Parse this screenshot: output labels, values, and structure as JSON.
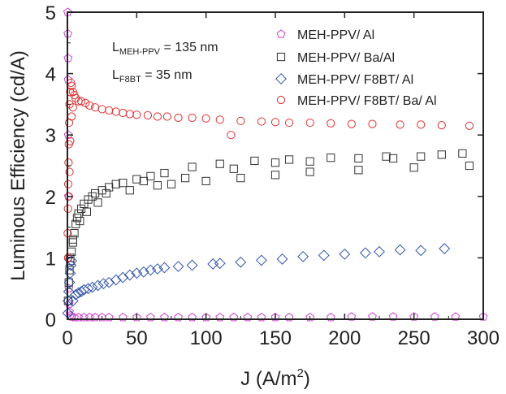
{
  "chart_data": {
    "type": "scatter",
    "title": "",
    "xlabel": "J (A/m",
    "xlabel_sup": "2",
    "xlabel_end": ")",
    "ylabel": "Luminous Efficiency (cd/A)",
    "xlim": [
      0,
      300
    ],
    "ylim": [
      0,
      5
    ],
    "xticks": [
      "0",
      "50",
      "100",
      "150",
      "200",
      "250",
      "300"
    ],
    "yticks": [
      "0",
      "1",
      "2",
      "3",
      "4",
      "5"
    ],
    "grid": false,
    "legend_position": "top-right",
    "annotations": [
      {
        "main": "L",
        "sub": "MEH-PPV",
        "value": " = 135 nm"
      },
      {
        "main": "L",
        "sub": "F8BT",
        "value": " = 35 nm"
      }
    ],
    "series": [
      {
        "name": "MEH-PPV/ Al",
        "marker": "pentagon",
        "color": "#cc44cc",
        "points": [
          [
            0.2,
            5.0
          ],
          [
            0.3,
            4.65
          ],
          [
            0.4,
            4.25
          ],
          [
            0.5,
            3.9
          ],
          [
            0.6,
            3.0
          ],
          [
            0.7,
            2.0
          ],
          [
            0.8,
            1.0
          ],
          [
            1.0,
            0.5
          ],
          [
            1.2,
            0.25
          ],
          [
            1.5,
            0.12
          ],
          [
            2,
            0.06
          ],
          [
            3,
            0.04
          ],
          [
            5,
            0.03
          ],
          [
            8,
            0.03
          ],
          [
            12,
            0.03
          ],
          [
            16,
            0.03
          ],
          [
            20,
            0.03
          ],
          [
            25,
            0.03
          ],
          [
            30,
            0.03
          ],
          [
            40,
            0.03
          ],
          [
            50,
            0.03
          ],
          [
            60,
            0.03
          ],
          [
            70,
            0.03
          ],
          [
            80,
            0.03
          ],
          [
            90,
            0.03
          ],
          [
            100,
            0.03
          ],
          [
            110,
            0.03
          ],
          [
            120,
            0.03
          ],
          [
            130,
            0.03
          ],
          [
            140,
            0.03
          ],
          [
            150,
            0.03
          ],
          [
            160,
            0.03
          ],
          [
            175,
            0.03
          ],
          [
            190,
            0.03
          ],
          [
            205,
            0.04
          ],
          [
            220,
            0.04
          ],
          [
            235,
            0.04
          ],
          [
            250,
            0.04
          ],
          [
            265,
            0.04
          ],
          [
            280,
            0.04
          ],
          [
            300,
            0.04
          ]
        ]
      },
      {
        "name": "MEH-PPV/ Ba/Al",
        "marker": "square",
        "color": "#333333",
        "points": [
          [
            0.5,
            0.3
          ],
          [
            1,
            0.6
          ],
          [
            1.5,
            0.8
          ],
          [
            2,
            0.95
          ],
          [
            3,
            1.1
          ],
          [
            4,
            1.25
          ],
          [
            5,
            1.4
          ],
          [
            6,
            1.55
          ],
          [
            7,
            1.65
          ],
          [
            8,
            1.72
          ],
          [
            10,
            1.8
          ],
          [
            12,
            1.88
          ],
          [
            15,
            1.95
          ],
          [
            18,
            2.0
          ],
          [
            20,
            2.05
          ],
          [
            25,
            2.1
          ],
          [
            30,
            2.15
          ],
          [
            35,
            2.2
          ],
          [
            40,
            2.22
          ],
          [
            50,
            2.28
          ],
          [
            60,
            2.33
          ],
          [
            70,
            2.38
          ],
          [
            75,
            2.2
          ],
          [
            90,
            2.48
          ],
          [
            100,
            2.25
          ],
          [
            110,
            2.53
          ],
          [
            125,
            2.3
          ],
          [
            135,
            2.58
          ],
          [
            150,
            2.35
          ],
          [
            160,
            2.6
          ],
          [
            175,
            2.4
          ],
          [
            190,
            2.63
          ],
          [
            210,
            2.43
          ],
          [
            230,
            2.65
          ],
          [
            250,
            2.47
          ],
          [
            270,
            2.68
          ],
          [
            290,
            2.5
          ],
          [
            2,
            1.0
          ],
          [
            4,
            1.3
          ],
          [
            9,
            1.6
          ],
          [
            14,
            1.75
          ],
          [
            22,
            1.9
          ],
          [
            28,
            2.05
          ],
          [
            45,
            2.1
          ],
          [
            55,
            2.25
          ],
          [
            65,
            2.18
          ],
          [
            85,
            2.3
          ],
          [
            120,
            2.45
          ],
          [
            150,
            2.55
          ],
          [
            175,
            2.57
          ],
          [
            210,
            2.62
          ],
          [
            235,
            2.62
          ],
          [
            255,
            2.65
          ],
          [
            285,
            2.7
          ]
        ]
      },
      {
        "name": "MEH-PPV/ F8BT/ Al",
        "marker": "diamond",
        "color": "#3355aa",
        "points": [
          [
            0.3,
            0.1
          ],
          [
            0.6,
            0.3
          ],
          [
            1,
            0.45
          ],
          [
            1.5,
            0.6
          ],
          [
            2,
            0.75
          ],
          [
            2.5,
            0.88
          ],
          [
            3,
            0.95
          ],
          [
            4,
            0.3
          ],
          [
            6,
            0.4
          ],
          [
            8,
            0.43
          ],
          [
            10,
            0.45
          ],
          [
            12,
            0.48
          ],
          [
            15,
            0.5
          ],
          [
            18,
            0.52
          ],
          [
            22,
            0.55
          ],
          [
            26,
            0.58
          ],
          [
            30,
            0.6
          ],
          [
            35,
            0.64
          ],
          [
            40,
            0.68
          ],
          [
            45,
            0.72
          ],
          [
            50,
            0.75
          ],
          [
            55,
            0.77
          ],
          [
            60,
            0.8
          ],
          [
            65,
            0.82
          ],
          [
            70,
            0.84
          ],
          [
            80,
            0.86
          ],
          [
            90,
            0.88
          ],
          [
            105,
            0.9
          ],
          [
            110,
            0.91
          ],
          [
            125,
            0.93
          ],
          [
            140,
            0.96
          ],
          [
            155,
            0.98
          ],
          [
            170,
            1.02
          ],
          [
            185,
            1.04
          ],
          [
            200,
            1.06
          ],
          [
            215,
            1.08
          ],
          [
            225,
            1.1
          ],
          [
            240,
            1.13
          ],
          [
            255,
            1.12
          ],
          [
            272,
            1.15
          ]
        ]
      },
      {
        "name": "MEH-PPV/ F8BT/ Ba/ Al",
        "marker": "circle",
        "color": "#e03030",
        "points": [
          [
            0.2,
            1.4
          ],
          [
            0.4,
            1.8
          ],
          [
            0.6,
            2.2
          ],
          [
            0.8,
            2.55
          ],
          [
            1.0,
            2.85
          ],
          [
            1.2,
            3.2
          ],
          [
            1.5,
            3.5
          ],
          [
            2,
            3.7
          ],
          [
            2.5,
            3.85
          ],
          [
            3,
            3.8
          ],
          [
            4,
            3.7
          ],
          [
            5,
            3.65
          ],
          [
            6,
            3.6
          ],
          [
            8,
            3.55
          ],
          [
            10,
            3.55
          ],
          [
            13,
            3.52
          ],
          [
            16,
            3.48
          ],
          [
            20,
            3.45
          ],
          [
            25,
            3.42
          ],
          [
            30,
            3.4
          ],
          [
            35,
            3.38
          ],
          [
            40,
            3.36
          ],
          [
            45,
            3.34
          ],
          [
            50,
            3.33
          ],
          [
            58,
            3.32
          ],
          [
            65,
            3.3
          ],
          [
            72,
            3.3
          ],
          [
            80,
            3.28
          ],
          [
            90,
            3.28
          ],
          [
            100,
            3.27
          ],
          [
            110,
            3.25
          ],
          [
            118,
            3.0
          ],
          [
            125,
            3.23
          ],
          [
            140,
            3.22
          ],
          [
            150,
            3.21
          ],
          [
            160,
            3.2
          ],
          [
            175,
            3.2
          ],
          [
            190,
            3.19
          ],
          [
            205,
            3.18
          ],
          [
            220,
            3.18
          ],
          [
            240,
            3.17
          ],
          [
            255,
            3.17
          ],
          [
            270,
            3.16
          ],
          [
            290,
            3.15
          ],
          [
            0.5,
            1.0
          ],
          [
            1,
            2.0
          ],
          [
            1.5,
            2.4
          ],
          [
            2,
            2.9
          ],
          [
            3,
            3.3
          ],
          [
            4,
            3.45
          ]
        ]
      }
    ]
  }
}
